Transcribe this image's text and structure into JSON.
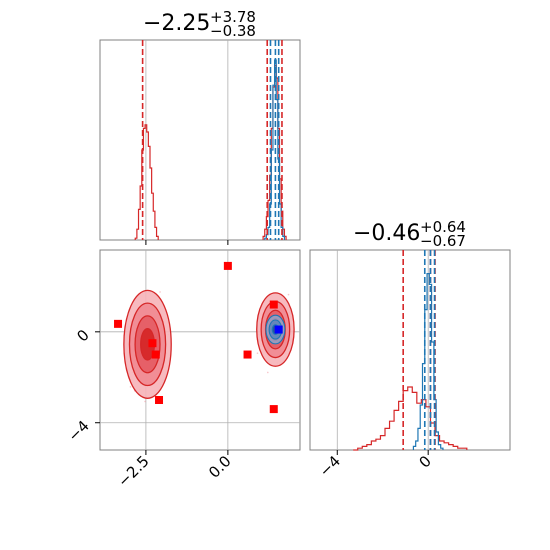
{
  "chart_data": {
    "type": "corner",
    "colors": {
      "red": "#d62728",
      "blue": "#1f77b4",
      "marker_red": "#ff0000",
      "marker_blue": "#0000ff",
      "grid": "#b0b0b0",
      "axes": "#808080"
    },
    "grid": true,
    "params": [
      {
        "title_main": "−2.25",
        "title_plus": "+3.78",
        "title_minus": "−0.38",
        "range": [
          -3.9,
          2.2
        ]
      },
      {
        "title_main": "−0.46",
        "title_plus": "+0.64",
        "title_minus": "−0.67",
        "range": [
          -5.2,
          3.6
        ]
      }
    ],
    "ticks": {
      "x0": [
        {
          "value": -2.5,
          "label": "−2.5"
        },
        {
          "value": 0.0,
          "label": "0.0"
        }
      ],
      "x1": [
        {
          "value": -4,
          "label": "−4"
        },
        {
          "value": 0,
          "label": "0"
        }
      ],
      "y1": [
        {
          "value": 0,
          "label": "0"
        },
        {
          "value": -4,
          "label": "−4"
        }
      ]
    },
    "marginal_0": {
      "quantile_lines_red": [
        -2.6,
        1.2,
        1.65
      ],
      "quantile_lines_blue": [
        1.3,
        1.45,
        1.55
      ],
      "hist_red": [
        {
          "x": -2.8,
          "y": 0.01
        },
        {
          "x": -2.75,
          "y": 0.06
        },
        {
          "x": -2.7,
          "y": 0.17
        },
        {
          "x": -2.65,
          "y": 0.3
        },
        {
          "x": -2.6,
          "y": 0.5
        },
        {
          "x": -2.55,
          "y": 0.62
        },
        {
          "x": -2.5,
          "y": 0.64
        },
        {
          "x": -2.45,
          "y": 0.6
        },
        {
          "x": -2.4,
          "y": 0.52
        },
        {
          "x": -2.35,
          "y": 0.4
        },
        {
          "x": -2.3,
          "y": 0.26
        },
        {
          "x": -2.25,
          "y": 0.16
        },
        {
          "x": -2.2,
          "y": 0.07
        },
        {
          "x": -2.15,
          "y": 0.02
        },
        {
          "x": 1.1,
          "y": 0.02
        },
        {
          "x": 1.15,
          "y": 0.06
        },
        {
          "x": 1.2,
          "y": 0.13
        },
        {
          "x": 1.25,
          "y": 0.22
        },
        {
          "x": 1.3,
          "y": 0.36
        },
        {
          "x": 1.35,
          "y": 0.62
        },
        {
          "x": 1.4,
          "y": 0.85
        },
        {
          "x": 1.45,
          "y": 0.97
        },
        {
          "x": 1.5,
          "y": 0.9
        },
        {
          "x": 1.55,
          "y": 0.62
        },
        {
          "x": 1.6,
          "y": 0.34
        },
        {
          "x": 1.65,
          "y": 0.16
        },
        {
          "x": 1.7,
          "y": 0.06
        },
        {
          "x": 1.75,
          "y": 0.02
        }
      ],
      "hist_blue": [
        {
          "x": 1.15,
          "y": 0.01
        },
        {
          "x": 1.2,
          "y": 0.03
        },
        {
          "x": 1.25,
          "y": 0.07
        },
        {
          "x": 1.3,
          "y": 0.2
        },
        {
          "x": 1.35,
          "y": 0.5
        },
        {
          "x": 1.4,
          "y": 0.86
        },
        {
          "x": 1.45,
          "y": 1.0
        },
        {
          "x": 1.5,
          "y": 0.78
        },
        {
          "x": 1.55,
          "y": 0.45
        },
        {
          "x": 1.6,
          "y": 0.2
        },
        {
          "x": 1.65,
          "y": 0.07
        },
        {
          "x": 1.7,
          "y": 0.02
        }
      ]
    },
    "marginal_1": {
      "quantile_lines_red": [
        -1.1,
        0.1,
        0.3
      ],
      "quantile_lines_blue": [
        -0.15,
        0.1,
        0.28
      ],
      "hist_red": [
        {
          "x": -3.2,
          "y": 0.0
        },
        {
          "x": -3.0,
          "y": 0.01
        },
        {
          "x": -2.8,
          "y": 0.02
        },
        {
          "x": -2.6,
          "y": 0.03
        },
        {
          "x": -2.4,
          "y": 0.05
        },
        {
          "x": -2.2,
          "y": 0.06
        },
        {
          "x": -2.0,
          "y": 0.08
        },
        {
          "x": -1.8,
          "y": 0.12
        },
        {
          "x": -1.6,
          "y": 0.16
        },
        {
          "x": -1.4,
          "y": 0.22
        },
        {
          "x": -1.2,
          "y": 0.27
        },
        {
          "x": -1.0,
          "y": 0.33
        },
        {
          "x": -0.8,
          "y": 0.35
        },
        {
          "x": -0.6,
          "y": 0.32
        },
        {
          "x": -0.4,
          "y": 0.26
        },
        {
          "x": -0.2,
          "y": 0.28
        },
        {
          "x": 0.0,
          "y": 0.24
        },
        {
          "x": 0.2,
          "y": 0.15
        },
        {
          "x": 0.4,
          "y": 0.08
        },
        {
          "x": 0.6,
          "y": 0.05
        },
        {
          "x": 0.8,
          "y": 0.04
        },
        {
          "x": 1.0,
          "y": 0.03
        },
        {
          "x": 1.2,
          "y": 0.02
        },
        {
          "x": 1.4,
          "y": 0.01
        },
        {
          "x": 1.6,
          "y": 0.01
        }
      ],
      "hist_blue": [
        {
          "x": -0.6,
          "y": 0.02
        },
        {
          "x": -0.5,
          "y": 0.05
        },
        {
          "x": -0.4,
          "y": 0.12
        },
        {
          "x": -0.3,
          "y": 0.25
        },
        {
          "x": -0.2,
          "y": 0.48
        },
        {
          "x": -0.1,
          "y": 0.78
        },
        {
          "x": 0.0,
          "y": 0.98
        },
        {
          "x": 0.1,
          "y": 0.92
        },
        {
          "x": 0.2,
          "y": 0.6
        },
        {
          "x": 0.3,
          "y": 0.28
        },
        {
          "x": 0.4,
          "y": 0.1
        },
        {
          "x": 0.5,
          "y": 0.03
        },
        {
          "x": 0.6,
          "y": 0.01
        }
      ]
    },
    "joint": {
      "red_modes": [
        {
          "x": -2.45,
          "y": -0.55,
          "sx": 0.38,
          "sy": 1.25
        },
        {
          "x": 1.45,
          "y": 0.1,
          "sx": 0.3,
          "sy": 0.85
        }
      ],
      "blue_mode": {
        "x": 1.45,
        "y": 0.1,
        "sx": 0.16,
        "sy": 0.35
      },
      "red_markers": [
        {
          "x": -3.35,
          "y": 0.35
        },
        {
          "x": -2.3,
          "y": -0.5
        },
        {
          "x": -2.2,
          "y": -1.0
        },
        {
          "x": -2.1,
          "y": -3.0
        },
        {
          "x": 0.0,
          "y": 2.9
        },
        {
          "x": 0.6,
          "y": -1.0
        },
        {
          "x": 1.4,
          "y": 1.2
        },
        {
          "x": 1.4,
          "y": -3.4
        }
      ],
      "blue_markers": [
        {
          "x": 1.55,
          "y": 0.1
        }
      ]
    }
  }
}
